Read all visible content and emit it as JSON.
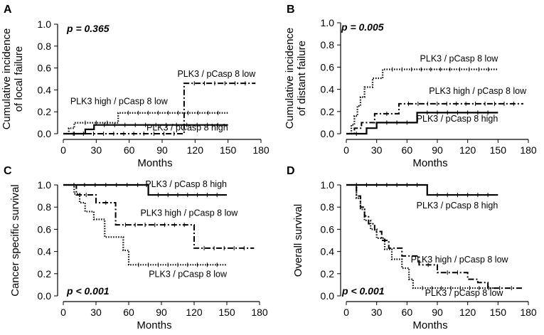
{
  "chart_data": [
    {
      "panel": "A",
      "type": "line",
      "step": true,
      "title": "",
      "pvalue": "p = 0.365",
      "xlabel": "Months",
      "ylabel": [
        "Cumulative  incidence",
        "of local failure"
      ],
      "xlim": [
        0,
        180
      ],
      "ylim": [
        0,
        1.0
      ],
      "xticks": [
        0,
        30,
        60,
        90,
        120,
        150,
        180
      ],
      "yticks": [
        "0.0",
        "0.2",
        "0.4",
        "0.6",
        "0.8",
        "1.0"
      ],
      "series": [
        {
          "name": "PLK3 / pCasp 8 low",
          "style": "dashdot",
          "x": [
            0,
            110,
            175
          ],
          "y": [
            0,
            0.46,
            0.46
          ],
          "label_x": 175,
          "label_y": 0.52
        },
        {
          "name": "PLK3 high / pCasp 8 low",
          "style": "dotted",
          "x": [
            0,
            5,
            10,
            50,
            150
          ],
          "y": [
            0,
            0.05,
            0.1,
            0.19,
            0.19
          ],
          "label_x": 95,
          "label_y": 0.27
        },
        {
          "name": "PLK3 / pCasp 8 high",
          "style": "solid",
          "x": [
            0,
            20,
            28,
            150
          ],
          "y": [
            0,
            0.04,
            0.08,
            0.08
          ],
          "label_x": 150,
          "label_y": 0.03
        }
      ]
    },
    {
      "panel": "B",
      "type": "line",
      "step": true,
      "title": "",
      "pvalue": "p = 0.005",
      "xlabel": "Months",
      "ylabel": [
        "Cumulative  incidence",
        "of distant failure"
      ],
      "xlim": [
        0,
        180
      ],
      "ylim": [
        0,
        1.0
      ],
      "xticks": [
        0,
        30,
        60,
        90,
        120,
        150,
        180
      ],
      "yticks": [
        "0.0",
        "0.2",
        "0.4",
        "0.6",
        "0.8",
        "1.0"
      ],
      "series": [
        {
          "name": "PLK3 / pCasp 8 low",
          "style": "dotted",
          "x": [
            0,
            5,
            8,
            11,
            14,
            18,
            26,
            36,
            150
          ],
          "y": [
            0,
            0.08,
            0.16,
            0.25,
            0.33,
            0.42,
            0.5,
            0.58,
            0.58
          ],
          "label_x": 150,
          "label_y": 0.65
        },
        {
          "name": "PLK3 high / pCasp 8 low",
          "style": "dashdot",
          "x": [
            0,
            8,
            15,
            28,
            52,
            175
          ],
          "y": [
            0,
            0.05,
            0.1,
            0.18,
            0.27,
            0.27
          ],
          "label_x": 178,
          "label_y": 0.36
        },
        {
          "name": "PLK3 / pCasp 8 high",
          "style": "solid",
          "x": [
            0,
            20,
            30,
            70,
            150
          ],
          "y": [
            0,
            0.05,
            0.1,
            0.19,
            0.19
          ],
          "label_x": 150,
          "label_y": 0.11
        }
      ]
    },
    {
      "panel": "C",
      "type": "line",
      "step": true,
      "title": "",
      "pvalue": "p < 0.001",
      "xlabel": "Months",
      "ylabel": [
        "Cancer specific survival"
      ],
      "xlim": [
        0,
        180
      ],
      "ylim": [
        0,
        1.0
      ],
      "xticks": [
        0,
        30,
        60,
        90,
        120,
        150,
        180
      ],
      "yticks": [
        "0.0",
        "0.2",
        "0.4",
        "0.6",
        "0.8",
        "1.0"
      ],
      "series": [
        {
          "name": "PLK3 / pCasp 8 high",
          "style": "solid",
          "x": [
            0,
            78,
            150
          ],
          "y": [
            1.0,
            0.91,
            0.91
          ],
          "label_x": 150,
          "label_y": 0.98
        },
        {
          "name": "PLK3 high / pCasp 8 low",
          "style": "dashdot",
          "x": [
            0,
            12,
            30,
            48,
            120,
            175
          ],
          "y": [
            1.0,
            0.91,
            0.84,
            0.64,
            0.43,
            0.43
          ],
          "label_x": 160,
          "label_y": 0.72
        },
        {
          "name": "PLK3 / pCasp 8 low",
          "style": "dotted",
          "x": [
            0,
            10,
            15,
            20,
            28,
            38,
            55,
            60,
            150
          ],
          "y": [
            1.0,
            0.92,
            0.84,
            0.76,
            0.69,
            0.53,
            0.41,
            0.28,
            0.28
          ],
          "label_x": 150,
          "label_y": 0.17
        }
      ]
    },
    {
      "panel": "D",
      "type": "line",
      "step": true,
      "title": "",
      "pvalue": "p < 0.001",
      "xlabel": "Months",
      "ylabel": [
        "Overall survival"
      ],
      "xlim": [
        0,
        180
      ],
      "ylim": [
        0,
        1.0
      ],
      "xticks": [
        0,
        30,
        60,
        90,
        120,
        150,
        180
      ],
      "yticks": [
        "0.0",
        "0.2",
        "0.4",
        "0.6",
        "0.8",
        "1.0"
      ],
      "series": [
        {
          "name": "PLK3 / pCasp 8 high",
          "style": "solid",
          "x": [
            0,
            80,
            150
          ],
          "y": [
            1.0,
            0.91,
            0.91
          ],
          "label_x": 150,
          "label_y": 0.79
        },
        {
          "name": "PLK3 high / pCasp 8 low",
          "style": "dashdot",
          "x": [
            0,
            10,
            14,
            18,
            22,
            28,
            35,
            42,
            55,
            72,
            90,
            120,
            130,
            140,
            175
          ],
          "y": [
            1.0,
            0.9,
            0.8,
            0.72,
            0.65,
            0.58,
            0.5,
            0.43,
            0.36,
            0.28,
            0.21,
            0.15,
            0.12,
            0.07,
            0.07
          ],
          "label_x": 160,
          "label_y": 0.3
        },
        {
          "name": "PLK3 / pCasp 8 low",
          "style": "dotted",
          "x": [
            0,
            10,
            14,
            18,
            24,
            30,
            38,
            45,
            55,
            62,
            66,
            150
          ],
          "y": [
            1.0,
            0.88,
            0.78,
            0.68,
            0.6,
            0.52,
            0.42,
            0.33,
            0.25,
            0.15,
            0.07,
            0.07
          ],
          "label_x": 155,
          "label_y": 0.0
        }
      ]
    }
  ]
}
